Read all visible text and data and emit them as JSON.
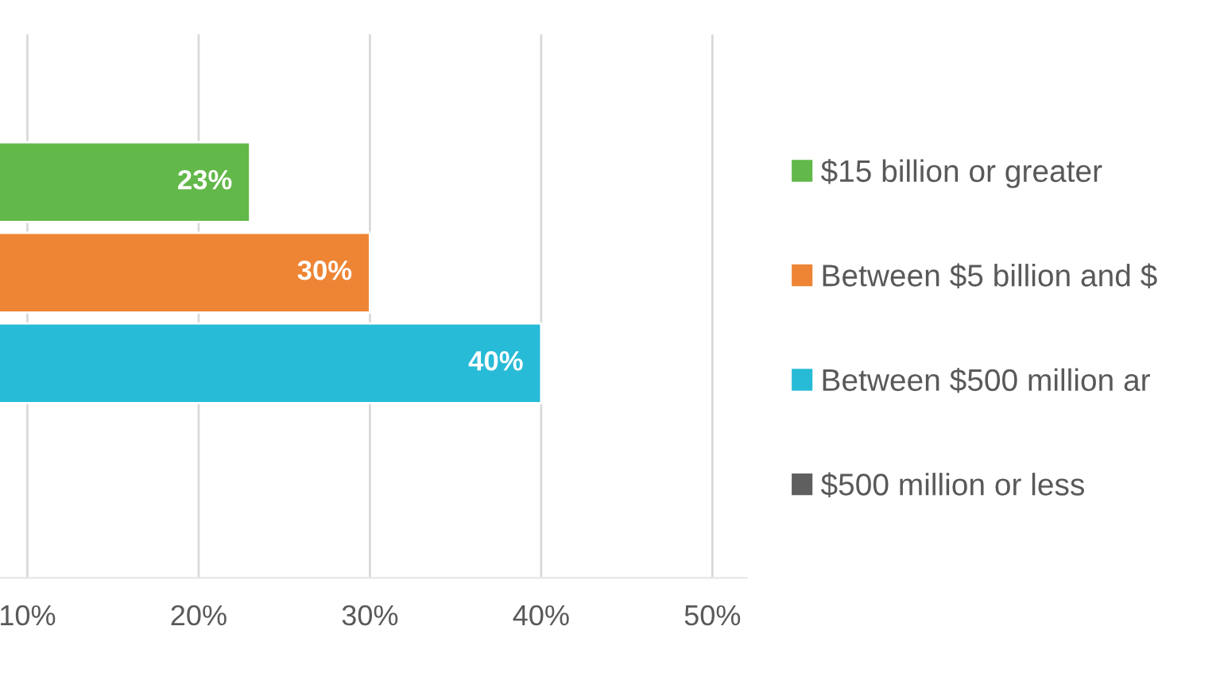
{
  "chart_data": {
    "type": "bar",
    "orientation": "horizontal",
    "categories": [
      null
    ],
    "series": [
      {
        "name": "$15 billion or greater",
        "color": "#62b849",
        "values": [
          23
        ],
        "value_labels": [
          "23%"
        ]
      },
      {
        "name": "Between $5 billion and $",
        "color": "#ee8535",
        "values": [
          30
        ],
        "value_labels": [
          "30%"
        ]
      },
      {
        "name": "Between $500 million ar",
        "color": "#27bbd7",
        "values": [
          40
        ],
        "value_labels": [
          "40%"
        ]
      },
      {
        "name": "$500 million or less",
        "color": "#5f5f5f",
        "values": [
          null
        ]
      }
    ],
    "xlim": [
      8.4,
      52
    ],
    "xticks": [
      {
        "value": 10,
        "label": "10%"
      },
      {
        "value": 20,
        "label": "20%"
      },
      {
        "value": 30,
        "label": "30%"
      },
      {
        "value": 40,
        "label": "40%"
      },
      {
        "value": 50,
        "label": "50%"
      }
    ],
    "grid": "x",
    "legend": "right",
    "tick_labels": "x"
  }
}
